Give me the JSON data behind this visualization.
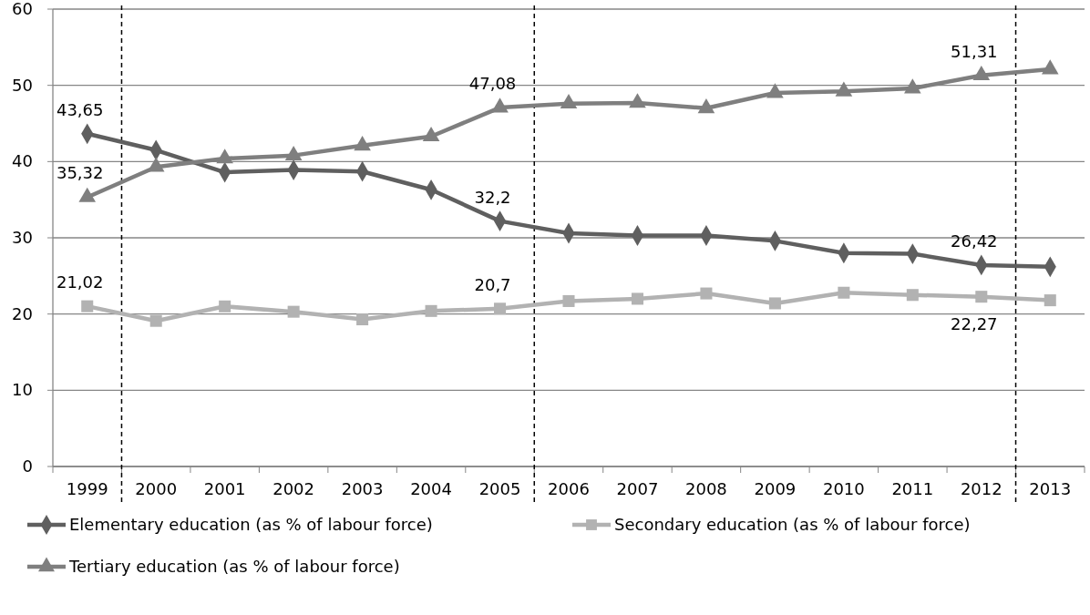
{
  "chart_data": {
    "type": "line",
    "x": [
      1999,
      2000,
      2001,
      2002,
      2003,
      2004,
      2005,
      2006,
      2007,
      2008,
      2009,
      2010,
      2011,
      2012,
      2013
    ],
    "xlim": [
      1998.5,
      2013.5
    ],
    "xticks": [
      {
        "value": 1998.5,
        "label": null
      },
      1999,
      {
        "value": 1999.5,
        "label": null
      },
      2000,
      {
        "value": 2000.5,
        "label": null
      },
      2001,
      {
        "value": 2001.5,
        "label": null
      },
      2002,
      {
        "value": 2002.5,
        "label": null
      },
      2003,
      {
        "value": 2003.5,
        "label": null
      },
      2004,
      {
        "value": 2004.5,
        "label": null
      },
      2005,
      {
        "value": 2005.5,
        "label": null
      },
      2006,
      {
        "value": 2006.5,
        "label": null
      },
      2007,
      {
        "value": 2007.5,
        "label": null
      },
      2008,
      {
        "value": 2008.5,
        "label": null
      },
      2009,
      {
        "value": 2009.5,
        "label": null
      },
      2010,
      {
        "value": 2010.5,
        "label": null
      },
      2011,
      {
        "value": 2011.5,
        "label": null
      },
      2012,
      {
        "value": 2012.5,
        "label": null
      },
      2013,
      {
        "value": 2013.5,
        "label": null
      }
    ],
    "ylim": [
      0,
      60
    ],
    "yticks": [
      0,
      10,
      20,
      30,
      40,
      50,
      60
    ],
    "grid": "y",
    "legend": "bottom",
    "series": [
      {
        "name": "Elementary education (as % of labour force)",
        "color": "#5f5f5f",
        "marker": "diamond",
        "values": [
          43.65,
          41.5,
          38.6,
          38.9,
          38.7,
          36.3,
          32.2,
          30.6,
          30.3,
          30.3,
          29.6,
          28.0,
          27.9,
          26.42,
          26.2
        ],
        "value_labels": [
          "43,65",
          null,
          null,
          null,
          null,
          null,
          "32,2",
          null,
          null,
          null,
          null,
          null,
          null,
          "26,42",
          null
        ]
      },
      {
        "name": "Secondary education (as % of labour force)",
        "color": "#b2b2b2",
        "marker": "square",
        "values": [
          21.02,
          19.1,
          21.0,
          20.3,
          19.3,
          20.4,
          20.7,
          21.7,
          22.0,
          22.7,
          21.4,
          22.8,
          22.5,
          22.27,
          21.8
        ],
        "value_labels": [
          "21,02",
          null,
          null,
          null,
          null,
          null,
          "20,7",
          null,
          null,
          null,
          null,
          null,
          null,
          "22,27",
          null
        ]
      },
      {
        "name": "Tertiary education (as % of labour force)",
        "color": "#7f7f7f",
        "marker": "triangle",
        "values": [
          35.32,
          39.3,
          40.4,
          40.8,
          42.1,
          43.3,
          47.08,
          47.6,
          47.7,
          47.0,
          49.0,
          49.2,
          49.6,
          51.31,
          52.1
        ],
        "value_labels": [
          "35,32",
          null,
          null,
          null,
          null,
          null,
          "47,08",
          null,
          null,
          null,
          null,
          null,
          null,
          "51,31",
          null
        ]
      }
    ],
    "ref_lines": [
      {
        "axis": "x",
        "value": 1999.5,
        "color": "#000000",
        "line_style": "dashed"
      },
      {
        "axis": "x",
        "value": 2005.5,
        "color": "#000000",
        "line_style": "dashed"
      },
      {
        "axis": "x",
        "value": 2012.5,
        "color": "#000000",
        "line_style": "dashed"
      }
    ]
  }
}
